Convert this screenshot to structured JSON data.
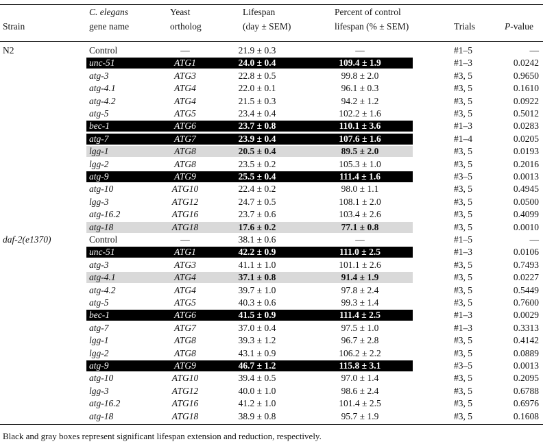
{
  "header": {
    "strain": "Strain",
    "gene_line1": "C. elegans",
    "gene_line2": "gene name",
    "ortholog_line1": "Yeast",
    "ortholog_line2": "ortholog",
    "lifespan_line1": "Lifespan",
    "lifespan_line2": "(day ± SEM)",
    "percent_line1": "Percent of control",
    "percent_line2": "lifespan (% ± SEM)",
    "trials": "Trials",
    "pvalue_italic": "P",
    "pvalue_rest": "-value"
  },
  "rows": [
    {
      "strain": "N2",
      "gene": "Control",
      "ortholog": "—",
      "lifespan": "21.9 ± 0.3",
      "percent": "—",
      "trials": "#1–5",
      "p": "—",
      "hl": "none"
    },
    {
      "strain": "",
      "gene": "unc-51",
      "ortholog": "ATG1",
      "lifespan": "24.0 ± 0.4",
      "percent": "109.4 ± 1.9",
      "trials": "#1–3",
      "p": "0.0242",
      "hl": "black"
    },
    {
      "strain": "",
      "gene": "atg-3",
      "ortholog": "ATG3",
      "lifespan": "22.8 ± 0.5",
      "percent": "99.8 ± 2.0",
      "trials": "#3, 5",
      "p": "0.9650",
      "hl": "none"
    },
    {
      "strain": "",
      "gene": "atg-4.1",
      "ortholog": "ATG4",
      "lifespan": "22.0 ± 0.1",
      "percent": "96.1 ± 0.3",
      "trials": "#3, 5",
      "p": "0.1610",
      "hl": "none"
    },
    {
      "strain": "",
      "gene": "atg-4.2",
      "ortholog": "ATG4",
      "lifespan": "21.5 ± 0.3",
      "percent": "94.2 ± 1.2",
      "trials": "#3, 5",
      "p": "0.0922",
      "hl": "none"
    },
    {
      "strain": "",
      "gene": "atg-5",
      "ortholog": "ATG5",
      "lifespan": "23.4 ± 0.4",
      "percent": "102.2 ± 1.6",
      "trials": "#3, 5",
      "p": "0.5012",
      "hl": "none"
    },
    {
      "strain": "",
      "gene": "bec-1",
      "ortholog": "ATG6",
      "lifespan": "23.7 ± 0.8",
      "percent": "110.1 ± 3.6",
      "trials": "#1–3",
      "p": "0.0283",
      "hl": "black"
    },
    {
      "strain": "",
      "gene": "atg-7",
      "ortholog": "ATG7",
      "lifespan": "23.9 ± 0.4",
      "percent": "107.6 ± 1.6",
      "trials": "#1–4",
      "p": "0.0205",
      "hl": "black"
    },
    {
      "strain": "",
      "gene": "lgg-1",
      "ortholog": "ATG8",
      "lifespan": "20.5 ± 0.4",
      "percent": "89.5 ± 2.0",
      "trials": "#3, 5",
      "p": "0.0193",
      "hl": "gray"
    },
    {
      "strain": "",
      "gene": "lgg-2",
      "ortholog": "ATG8",
      "lifespan": "23.5 ± 0.2",
      "percent": "105.3 ± 1.0",
      "trials": "#3, 5",
      "p": "0.2016",
      "hl": "none"
    },
    {
      "strain": "",
      "gene": "atg-9",
      "ortholog": "ATG9",
      "lifespan": "25.5 ± 0.4",
      "percent": "111.4 ± 1.6",
      "trials": "#3–5",
      "p": "0.0013",
      "hl": "black"
    },
    {
      "strain": "",
      "gene": "atg-10",
      "ortholog": "ATG10",
      "lifespan": "22.4 ± 0.2",
      "percent": "98.0 ± 1.1",
      "trials": "#3, 5",
      "p": "0.4945",
      "hl": "none"
    },
    {
      "strain": "",
      "gene": "lgg-3",
      "ortholog": "ATG12",
      "lifespan": "24.7 ± 0.5",
      "percent": "108.1 ± 2.0",
      "trials": "#3, 5",
      "p": "0.0500",
      "hl": "none"
    },
    {
      "strain": "",
      "gene": "atg-16.2",
      "ortholog": "ATG16",
      "lifespan": "23.7 ± 0.6",
      "percent": "103.4 ± 2.6",
      "trials": "#3, 5",
      "p": "0.4099",
      "hl": "none"
    },
    {
      "strain": "",
      "gene": "atg-18",
      "ortholog": "ATG18",
      "lifespan": "17.6 ± 0.2",
      "percent": "77.1 ± 0.8",
      "trials": "#3, 5",
      "p": "0.0010",
      "hl": "gray"
    },
    {
      "strain": "daf-2(e1370)",
      "gene": "Control",
      "ortholog": "—",
      "lifespan": "38.1 ± 0.6",
      "percent": "—",
      "trials": "#1–5",
      "p": "—",
      "hl": "none"
    },
    {
      "strain": "",
      "gene": "unc-51",
      "ortholog": "ATG1",
      "lifespan": "42.2 ± 0.9",
      "percent": "111.0 ± 2.5",
      "trials": "#1–3",
      "p": "0.0106",
      "hl": "black"
    },
    {
      "strain": "",
      "gene": "atg-3",
      "ortholog": "ATG3",
      "lifespan": "41.1 ± 1.0",
      "percent": "101.1 ± 2.6",
      "trials": "#3, 5",
      "p": "0.7493",
      "hl": "none"
    },
    {
      "strain": "",
      "gene": "atg-4.1",
      "ortholog": "ATG4",
      "lifespan": "37.1 ± 0.8",
      "percent": "91.4 ± 1.9",
      "trials": "#3, 5",
      "p": "0.0227",
      "hl": "gray"
    },
    {
      "strain": "",
      "gene": "atg-4.2",
      "ortholog": "ATG4",
      "lifespan": "39.7 ± 1.0",
      "percent": "97.8 ± 2.4",
      "trials": "#3, 5",
      "p": "0.5449",
      "hl": "none"
    },
    {
      "strain": "",
      "gene": "atg-5",
      "ortholog": "ATG5",
      "lifespan": "40.3 ± 0.6",
      "percent": "99.3 ± 1.4",
      "trials": "#3, 5",
      "p": "0.7600",
      "hl": "none"
    },
    {
      "strain": "",
      "gene": "bec-1",
      "ortholog": "ATG6",
      "lifespan": "41.5 ± 0.9",
      "percent": "111.4 ± 2.5",
      "trials": "#1–3",
      "p": "0.0029",
      "hl": "black"
    },
    {
      "strain": "",
      "gene": "atg-7",
      "ortholog": "ATG7",
      "lifespan": "37.0 ± 0.4",
      "percent": "97.5 ± 1.0",
      "trials": "#1–3",
      "p": "0.3313",
      "hl": "none"
    },
    {
      "strain": "",
      "gene": "lgg-1",
      "ortholog": "ATG8",
      "lifespan": "39.3 ± 1.2",
      "percent": "96.7 ± 2.8",
      "trials": "#3, 5",
      "p": "0.4142",
      "hl": "none"
    },
    {
      "strain": "",
      "gene": "lgg-2",
      "ortholog": "ATG8",
      "lifespan": "43.1 ± 0.9",
      "percent": "106.2 ± 2.2",
      "trials": "#3, 5",
      "p": "0.0889",
      "hl": "none"
    },
    {
      "strain": "",
      "gene": "atg-9",
      "ortholog": "ATG9",
      "lifespan": "46.7 ± 1.2",
      "percent": "115.8 ± 3.1",
      "trials": "#3–5",
      "p": "0.0013",
      "hl": "black"
    },
    {
      "strain": "",
      "gene": "atg-10",
      "ortholog": "ATG10",
      "lifespan": "39.4 ± 0.5",
      "percent": "97.0 ± 1.4",
      "trials": "#3, 5",
      "p": "0.2095",
      "hl": "none"
    },
    {
      "strain": "",
      "gene": "lgg-3",
      "ortholog": "ATG12",
      "lifespan": "40.0 ± 1.0",
      "percent": "98.6 ± 2.4",
      "trials": "#3, 5",
      "p": "0.6788",
      "hl": "none"
    },
    {
      "strain": "",
      "gene": "atg-16.2",
      "ortholog": "ATG16",
      "lifespan": "41.2 ± 1.0",
      "percent": "101.4 ± 2.5",
      "trials": "#3, 5",
      "p": "0.6976",
      "hl": "none"
    },
    {
      "strain": "",
      "gene": "atg-18",
      "ortholog": "ATG18",
      "lifespan": "38.9 ± 0.8",
      "percent": "95.7 ± 1.9",
      "trials": "#3, 5",
      "p": "0.1608",
      "hl": "none"
    }
  ],
  "footer": "Black and gray boxes represent significant lifespan extension and reduction, respectively."
}
